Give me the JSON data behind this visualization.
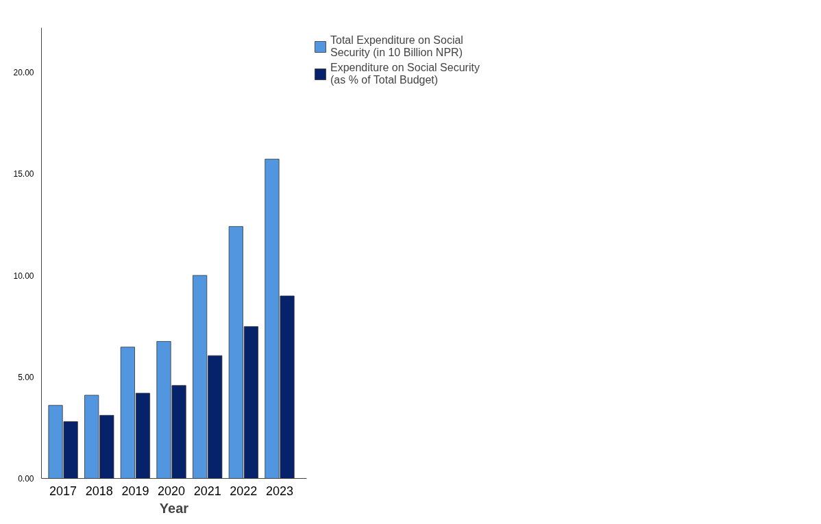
{
  "chart_data": {
    "type": "bar",
    "xlabel": "Year",
    "categories": [
      "2017",
      "2018",
      "2019",
      "2020",
      "2021",
      "2022",
      "2023"
    ],
    "series": [
      {
        "name": "Total Expenditure on Social Security (in 10 Billion NPR)",
        "color": "#5296e0",
        "values": [
          3.6,
          4.1,
          6.47,
          6.75,
          10.0,
          12.41,
          15.73
        ]
      },
      {
        "name": "Expenditure on Social Security (as % of Total Budget)",
        "color": "#06226b",
        "values": [
          2.8,
          3.11,
          4.2,
          4.58,
          6.05,
          7.48,
          8.99
        ]
      }
    ],
    "ylim": [
      0,
      22.2
    ],
    "yticks": [
      {
        "value": 0,
        "label": "0.00"
      },
      {
        "value": 5,
        "label": "5.00"
      },
      {
        "value": 10,
        "label": "10.00"
      },
      {
        "value": 15,
        "label": "15.00"
      },
      {
        "value": 20,
        "label": "20.00"
      }
    ],
    "grid": false,
    "legend": "right"
  }
}
